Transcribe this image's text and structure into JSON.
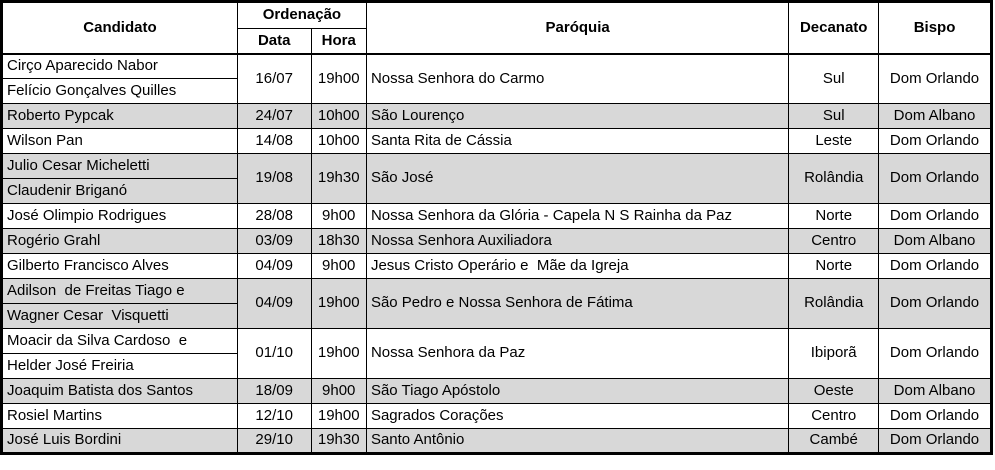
{
  "colors": {
    "border": "#000000",
    "text": "#000000",
    "row_plain": "#ffffff",
    "row_shaded": "#d8d8d8"
  },
  "table": {
    "headers": {
      "candidato": "Candidato",
      "ordenacao": "Ordenação",
      "data": "Data",
      "hora": "Hora",
      "paroquia": "Paróquia",
      "decanato": "Decanato",
      "bispo": "Bispo"
    },
    "groups": [
      {
        "candidates": [
          "Cirço Aparecido Nabor",
          "Felício Gonçalves Quilles"
        ],
        "data": "16/07",
        "hora": "19h00",
        "paroquia": "Nossa Senhora do Carmo",
        "decanato": "Sul",
        "bispo": "Dom Orlando",
        "shaded": false
      },
      {
        "candidates": [
          "Roberto Pypcak"
        ],
        "data": "24/07",
        "hora": "10h00",
        "paroquia": "São Lourenço",
        "decanato": "Sul",
        "bispo": "Dom Albano",
        "shaded": true
      },
      {
        "candidates": [
          "Wilson Pan"
        ],
        "data": "14/08",
        "hora": "10h00",
        "paroquia": "Santa Rita de Cássia",
        "decanato": "Leste",
        "bispo": "Dom Orlando",
        "shaded": false
      },
      {
        "candidates": [
          "Julio Cesar Micheletti",
          "Claudenir Briganó"
        ],
        "data": "19/08",
        "hora": "19h30",
        "paroquia": "São José",
        "decanato": "Rolândia",
        "bispo": "Dom Orlando",
        "shaded": true
      },
      {
        "candidates": [
          "José Olimpio Rodrigues"
        ],
        "data": "28/08",
        "hora": "9h00",
        "paroquia": "Nossa Senhora da Glória - Capela N S Rainha da Paz",
        "decanato": "Norte",
        "bispo": "Dom Orlando",
        "shaded": false
      },
      {
        "candidates": [
          "Rogério Grahl"
        ],
        "data": "03/09",
        "hora": "18h30",
        "paroquia": "Nossa Senhora Auxiliadora",
        "decanato": "Centro",
        "bispo": "Dom Albano",
        "shaded": true
      },
      {
        "candidates": [
          "Gilberto Francisco Alves"
        ],
        "data": "04/09",
        "hora": "9h00",
        "paroquia": "Jesus Cristo Operário e  Mãe da Igreja",
        "decanato": "Norte",
        "bispo": "Dom Orlando",
        "shaded": false
      },
      {
        "candidates": [
          "Adilson  de Freitas Tiago e",
          "Wagner Cesar  Visquetti"
        ],
        "data": "04/09",
        "hora": "19h00",
        "paroquia": "São Pedro e Nossa Senhora de Fátima",
        "decanato": "Rolândia",
        "bispo": "Dom Orlando",
        "shaded": true
      },
      {
        "candidates": [
          "Moacir da Silva Cardoso  e",
          "Helder José Freiria"
        ],
        "data": "01/10",
        "hora": "19h00",
        "paroquia": "Nossa Senhora da Paz",
        "decanato": "Ibiporã",
        "bispo": "Dom Orlando",
        "shaded": false
      },
      {
        "candidates": [
          "Joaquim Batista dos Santos"
        ],
        "data": "18/09",
        "hora": "9h00",
        "paroquia": "São Tiago Apóstolo",
        "decanato": "Oeste",
        "bispo": "Dom Albano",
        "shaded": true
      },
      {
        "candidates": [
          "Rosiel Martins"
        ],
        "data": "12/10",
        "hora": "19h00",
        "paroquia": "Sagrados Corações",
        "decanato": "Centro",
        "bispo": "Dom Orlando",
        "shaded": false
      },
      {
        "candidates": [
          "José Luis Bordini"
        ],
        "data": "29/10",
        "hora": "19h30",
        "paroquia": "Santo Antônio",
        "decanato": "Cambé",
        "bispo": "Dom Orlando",
        "shaded": true
      }
    ]
  }
}
